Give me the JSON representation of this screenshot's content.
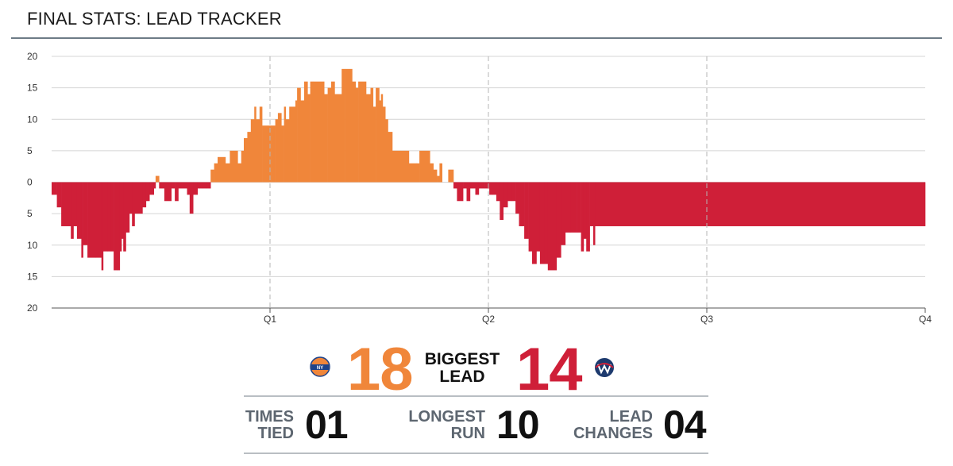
{
  "header": {
    "title": "FINAL STATS: LEAD TRACKER"
  },
  "colors": {
    "home": "#f0863a",
    "away": "#cf1f38",
    "grid": "#d4d4d4",
    "quarter_line": "#b5b5b5"
  },
  "chart_data": {
    "type": "area",
    "title": "FINAL STATS: LEAD TRACKER",
    "x_tick_labels": [
      "Q1",
      "Q2",
      "Q3",
      "Q4"
    ],
    "y_tick_labels": [
      "20",
      "15",
      "10",
      "5",
      "0",
      "5",
      "10",
      "15",
      "20"
    ],
    "ylim": [
      -20,
      20
    ],
    "grid": true,
    "series": [],
    "leads": [
      [
        0.0,
        -2
      ],
      [
        0.006,
        -4
      ],
      [
        0.011,
        -7
      ],
      [
        0.022,
        -9
      ],
      [
        0.025,
        -7
      ],
      [
        0.029,
        -9
      ],
      [
        0.034,
        -12
      ],
      [
        0.036,
        -10
      ],
      [
        0.041,
        -12
      ],
      [
        0.05,
        -12
      ],
      [
        0.057,
        -14
      ],
      [
        0.059,
        -11
      ],
      [
        0.064,
        -11
      ],
      [
        0.068,
        -11
      ],
      [
        0.071,
        -14
      ],
      [
        0.075,
        -14
      ],
      [
        0.078,
        -11
      ],
      [
        0.08,
        -9
      ],
      [
        0.082,
        -11
      ],
      [
        0.085,
        -8
      ],
      [
        0.089,
        -5
      ],
      [
        0.092,
        -7
      ],
      [
        0.095,
        -5
      ],
      [
        0.104,
        -4
      ],
      [
        0.108,
        -3
      ],
      [
        0.112,
        -2
      ],
      [
        0.117,
        -1
      ],
      [
        0.119,
        1
      ],
      [
        0.123,
        -1
      ],
      [
        0.129,
        -3
      ],
      [
        0.137,
        -1
      ],
      [
        0.141,
        -3
      ],
      [
        0.145,
        -1
      ],
      [
        0.155,
        -2
      ],
      [
        0.158,
        -5
      ],
      [
        0.162,
        -2
      ],
      [
        0.167,
        -1
      ],
      [
        0.173,
        -1
      ],
      [
        0.177,
        -1
      ],
      [
        0.18,
        -1
      ],
      [
        0.182,
        2
      ],
      [
        0.186,
        3
      ],
      [
        0.19,
        4
      ],
      [
        0.199,
        3
      ],
      [
        0.204,
        5
      ],
      [
        0.213,
        3
      ],
      [
        0.217,
        5
      ],
      [
        0.22,
        7
      ],
      [
        0.224,
        8
      ],
      [
        0.228,
        10
      ],
      [
        0.232,
        12
      ],
      [
        0.234,
        10
      ],
      [
        0.238,
        12
      ],
      [
        0.241,
        9
      ],
      [
        0.251,
        9
      ],
      [
        0.256,
        10
      ],
      [
        0.259,
        11
      ],
      [
        0.263,
        9
      ],
      [
        0.266,
        12
      ],
      [
        0.268,
        10
      ],
      [
        0.272,
        12
      ],
      [
        0.279,
        13
      ],
      [
        0.281,
        15
      ],
      [
        0.285,
        13
      ],
      [
        0.289,
        16
      ],
      [
        0.293,
        14
      ],
      [
        0.296,
        16
      ],
      [
        0.299,
        16
      ],
      [
        0.312,
        14
      ],
      [
        0.316,
        15
      ],
      [
        0.32,
        16
      ],
      [
        0.324,
        14
      ],
      [
        0.328,
        14
      ],
      [
        0.332,
        18
      ],
      [
        0.336,
        18
      ],
      [
        0.344,
        16
      ],
      [
        0.348,
        15
      ],
      [
        0.351,
        16
      ],
      [
        0.36,
        14
      ],
      [
        0.365,
        15
      ],
      [
        0.368,
        12
      ],
      [
        0.371,
        15
      ],
      [
        0.375,
        13
      ],
      [
        0.377,
        14
      ],
      [
        0.379,
        12
      ],
      [
        0.382,
        10
      ],
      [
        0.385,
        8
      ],
      [
        0.39,
        5
      ],
      [
        0.399,
        5
      ],
      [
        0.409,
        3
      ],
      [
        0.418,
        3
      ],
      [
        0.421,
        5
      ],
      [
        0.433,
        3
      ],
      [
        0.437,
        2
      ],
      [
        0.441,
        1
      ],
      [
        0.444,
        3
      ],
      [
        0.447,
        0
      ],
      [
        0.454,
        2
      ],
      [
        0.46,
        -1
      ],
      [
        0.464,
        -3
      ],
      [
        0.471,
        -1
      ],
      [
        0.475,
        -3
      ],
      [
        0.479,
        -1
      ],
      [
        0.485,
        -2
      ],
      [
        0.489,
        -1
      ],
      [
        0.496,
        -1
      ],
      [
        0.501,
        -2
      ],
      [
        0.505,
        -2
      ],
      [
        0.509,
        -3
      ],
      [
        0.513,
        -6
      ],
      [
        0.517,
        -4
      ],
      [
        0.522,
        -3
      ],
      [
        0.527,
        -3
      ],
      [
        0.531,
        -5
      ],
      [
        0.535,
        -7
      ],
      [
        0.541,
        -9
      ],
      [
        0.546,
        -11
      ],
      [
        0.55,
        -13
      ],
      [
        0.555,
        -11
      ],
      [
        0.559,
        -13
      ],
      [
        0.564,
        -13
      ],
      [
        0.568,
        -14
      ],
      [
        0.578,
        -12
      ],
      [
        0.583,
        -10
      ],
      [
        0.588,
        -8
      ],
      [
        0.594,
        -8
      ],
      [
        0.601,
        -8
      ],
      [
        0.606,
        -11
      ],
      [
        0.609,
        -9
      ],
      [
        0.612,
        -11
      ],
      [
        0.616,
        -7
      ],
      [
        0.62,
        -10
      ],
      [
        0.622,
        -7
      ]
    ]
  },
  "stats": {
    "biggest_lead": {
      "label": "BIGGEST\nLEAD",
      "home": "18",
      "away": "14"
    },
    "times_tied": {
      "label": "TIMES\nTIED",
      "value": "01"
    },
    "longest_run": {
      "label": "LONGEST\nRUN",
      "value": "10"
    },
    "lead_changes": {
      "label": "LEAD\nCHANGES",
      "value": "04"
    }
  },
  "logos": {
    "home": "knicks-logo-icon",
    "away": "wizards-logo-icon"
  }
}
